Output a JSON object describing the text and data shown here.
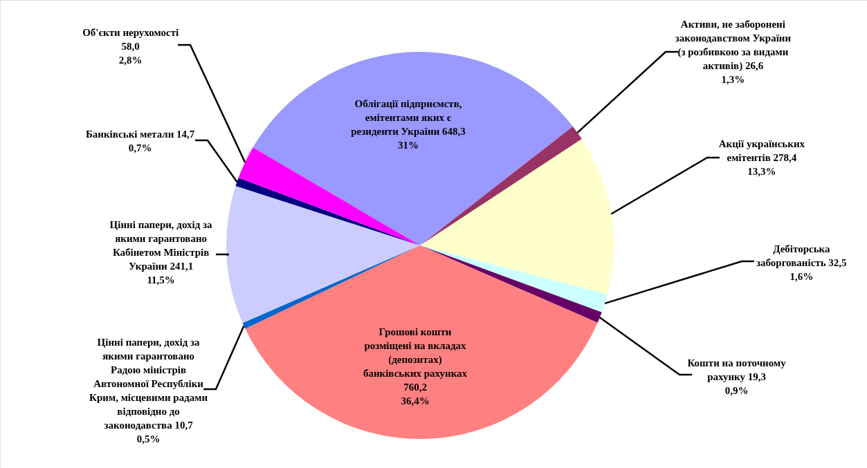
{
  "chart_data": {
    "type": "pie",
    "categories": [
      "Облігації підприємств, емітентами яких є резиденти України",
      "Активи, не заборонені законодавством України (з розбивкою за видами активів)",
      "Акції українських емітентів",
      "Дебіторська заборгованість",
      "Кошти на поточному рахунку",
      "Грошові кошти розміщені на вкладах (депозитах) банківських рахунках",
      "Цінні папери, дохід за якими гарантовано Радою міністрів Автономної Республіки Крим, місцевими радами відповідно до законодавства",
      "Цінні папери, дохід за якими гарантовано Кабінетом Міністрів України",
      "Банківські метали",
      "Об'єкти нерухомості"
    ],
    "values": [
      648.3,
      26.6,
      278.4,
      32.5,
      19.3,
      760.2,
      10.7,
      241.1,
      14.7,
      58.0
    ],
    "value_labels": [
      "648,3 31%",
      "26,6 1,3%",
      "278,4 13,3%",
      "32,5 1,6%",
      "19,3 0,9%",
      "760,2 36,4%",
      "10,7 0,5%",
      "241,1 11,5%",
      "14,7 0,7%",
      "58,0 2,8%"
    ],
    "colors": [
      "#9999ff",
      "#993366",
      "#ffffcc",
      "#ccffff",
      "#660066",
      "#ff8080",
      "#0066cc",
      "#ccccff",
      "#000080",
      "#ff00ff"
    ]
  }
}
